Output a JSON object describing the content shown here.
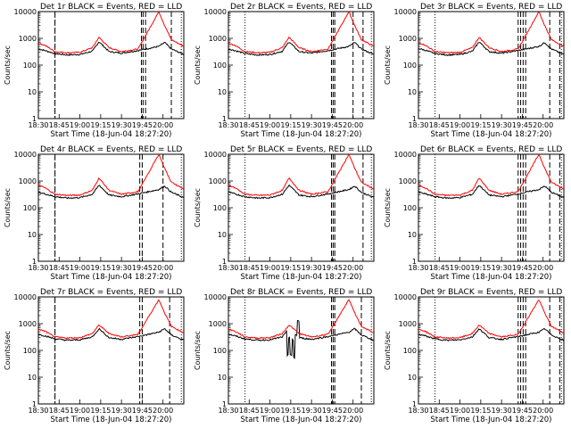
{
  "figure": {
    "xlabel": "Start Time (18-Jun-04 18:27:20)",
    "ylabel": "Counts/sec",
    "x_ticks": [
      "18:30",
      "18:45",
      "19:00",
      "19:15",
      "19:30",
      "19:45",
      "20:00"
    ],
    "y_ticks": [
      "1",
      "10",
      "100",
      "1000",
      "10000"
    ],
    "colors": {
      "events": "#000000",
      "lld": "#ff0000",
      "marker": "#000000"
    }
  },
  "chart_data": [
    {
      "type": "line",
      "title": "Det 1r BLACK = Events, RED = LLD",
      "panel": "det1r",
      "xlim": [
        18.5,
        20.25
      ],
      "ylim_log": [
        1,
        10000
      ],
      "marker_times": [
        18.7,
        19.74,
        19.76,
        19.79,
        20.1
      ],
      "variant": "normal",
      "series": [
        {
          "name": "Events",
          "values": [
            400,
            350,
            270,
            240,
            250,
            330,
            750,
            320,
            280,
            350,
            500,
            700,
            400,
            250
          ]
        },
        {
          "name": "LLD",
          "values": [
            650,
            550,
            320,
            290,
            300,
            450,
            1100,
            450,
            320,
            400,
            10000,
            3000,
            900,
            500
          ]
        }
      ]
    },
    {
      "type": "line",
      "title": "Det 2r BLACK = Events, RED = LLD",
      "panel": "det2r",
      "xlim": [
        18.5,
        20.25
      ],
      "ylim_log": [
        1,
        10000
      ],
      "marker_times": [
        19.74,
        19.76,
        19.78,
        20.0,
        20.12
      ],
      "variant": "normal",
      "series": [
        {
          "name": "Events",
          "values": [
            400,
            350,
            270,
            240,
            250,
            330,
            750,
            320,
            280,
            350,
            500,
            700,
            400,
            250
          ]
        },
        {
          "name": "LLD",
          "values": [
            650,
            550,
            320,
            290,
            300,
            450,
            1100,
            450,
            320,
            400,
            10000,
            3000,
            900,
            500
          ]
        }
      ]
    },
    {
      "type": "line",
      "title": "Det 3r BLACK = Events, RED = LLD",
      "panel": "det3r",
      "xlim": [
        18.5,
        20.25
      ],
      "ylim_log": [
        1,
        10000
      ],
      "marker_times": [
        19.7,
        19.73,
        19.76,
        19.79,
        20.08,
        20.2
      ],
      "variant": "normal",
      "series": [
        {
          "name": "Events",
          "values": [
            420,
            360,
            270,
            240,
            250,
            330,
            750,
            320,
            280,
            350,
            500,
            700,
            400,
            250
          ]
        },
        {
          "name": "LLD",
          "values": [
            700,
            560,
            320,
            290,
            300,
            450,
            1100,
            450,
            320,
            400,
            10000,
            3000,
            900,
            500
          ]
        }
      ]
    },
    {
      "type": "line",
      "title": "Det 4r BLACK = Events, RED = LLD",
      "panel": "det4r",
      "xlim": [
        18.5,
        20.25
      ],
      "ylim_log": [
        1,
        10000
      ],
      "marker_times": [
        18.7,
        19.72,
        19.75,
        20.0
      ],
      "variant": "normal",
      "series": [
        {
          "name": "Events",
          "values": [
            380,
            330,
            260,
            230,
            240,
            320,
            700,
            300,
            260,
            330,
            480,
            650,
            380,
            240
          ]
        },
        {
          "name": "LLD",
          "values": [
            700,
            560,
            320,
            290,
            300,
            450,
            1300,
            450,
            320,
            400,
            10000,
            3000,
            900,
            500
          ]
        }
      ]
    },
    {
      "type": "line",
      "title": "Det 5r BLACK = Events, RED = LLD",
      "panel": "det5r",
      "xlim": [
        18.5,
        20.25
      ],
      "ylim_log": [
        1,
        10000
      ],
      "marker_times": [
        19.74,
        19.76,
        19.78,
        20.12
      ],
      "variant": "normal",
      "series": [
        {
          "name": "Events",
          "values": [
            380,
            330,
            260,
            230,
            240,
            320,
            700,
            300,
            260,
            330,
            480,
            650,
            380,
            240
          ]
        },
        {
          "name": "LLD",
          "values": [
            700,
            560,
            320,
            290,
            300,
            450,
            1300,
            450,
            320,
            400,
            10000,
            3000,
            900,
            500
          ]
        }
      ]
    },
    {
      "type": "line",
      "title": "Det 6r BLACK = Events, RED = LLD",
      "panel": "det6r",
      "xlim": [
        18.5,
        20.25
      ],
      "ylim_log": [
        1,
        10000
      ],
      "marker_times": [
        19.7,
        19.73,
        19.76,
        19.79,
        20.08,
        20.2
      ],
      "variant": "normal",
      "series": [
        {
          "name": "Events",
          "values": [
            380,
            330,
            260,
            230,
            240,
            320,
            700,
            300,
            260,
            330,
            480,
            650,
            380,
            240
          ]
        },
        {
          "name": "LLD",
          "values": [
            700,
            560,
            320,
            290,
            300,
            450,
            1300,
            450,
            320,
            400,
            10000,
            3000,
            900,
            500
          ]
        }
      ]
    },
    {
      "type": "line",
      "title": "Det 7r BLACK = Events, RED = LLD",
      "panel": "det7r",
      "xlim": [
        18.5,
        20.25
      ],
      "ylim_log": [
        1,
        10000
      ],
      "marker_times": [
        18.7,
        19.72,
        19.75,
        20.08
      ],
      "variant": "normal",
      "series": [
        {
          "name": "Events",
          "values": [
            400,
            350,
            270,
            240,
            250,
            320,
            650,
            300,
            260,
            330,
            480,
            650,
            380,
            240
          ]
        },
        {
          "name": "LLD",
          "values": [
            620,
            520,
            320,
            290,
            300,
            430,
            900,
            430,
            320,
            400,
            8000,
            2500,
            800,
            450
          ]
        }
      ]
    },
    {
      "type": "line",
      "title": "Det 8r BLACK = Events, RED = LLD",
      "panel": "det8r",
      "xlim": [
        18.5,
        20.25
      ],
      "ylim_log": [
        1,
        10000
      ],
      "marker_times": [
        19.74,
        19.76,
        19.78,
        20.1
      ],
      "variant": "anomaly",
      "series": [
        {
          "name": "Events",
          "values": [
            400,
            350,
            270,
            240,
            250,
            320,
            650,
            300,
            260,
            330,
            480,
            650,
            380,
            240
          ]
        },
        {
          "name": "LLD",
          "values": [
            620,
            520,
            320,
            290,
            300,
            430,
            900,
            430,
            320,
            400,
            8000,
            2500,
            800,
            450
          ]
        }
      ]
    },
    {
      "type": "line",
      "title": "Det 9r BLACK = Events, RED = LLD",
      "panel": "det9r",
      "xlim": [
        18.5,
        20.25
      ],
      "ylim_log": [
        1,
        10000
      ],
      "marker_times": [
        19.7,
        19.73,
        19.76,
        19.79,
        20.08,
        20.2
      ],
      "variant": "normal",
      "series": [
        {
          "name": "Events",
          "values": [
            400,
            350,
            270,
            240,
            250,
            320,
            650,
            300,
            260,
            330,
            480,
            650,
            380,
            240
          ]
        },
        {
          "name": "LLD",
          "values": [
            620,
            520,
            320,
            290,
            300,
            430,
            900,
            430,
            320,
            400,
            8000,
            2500,
            800,
            450
          ]
        }
      ]
    }
  ]
}
